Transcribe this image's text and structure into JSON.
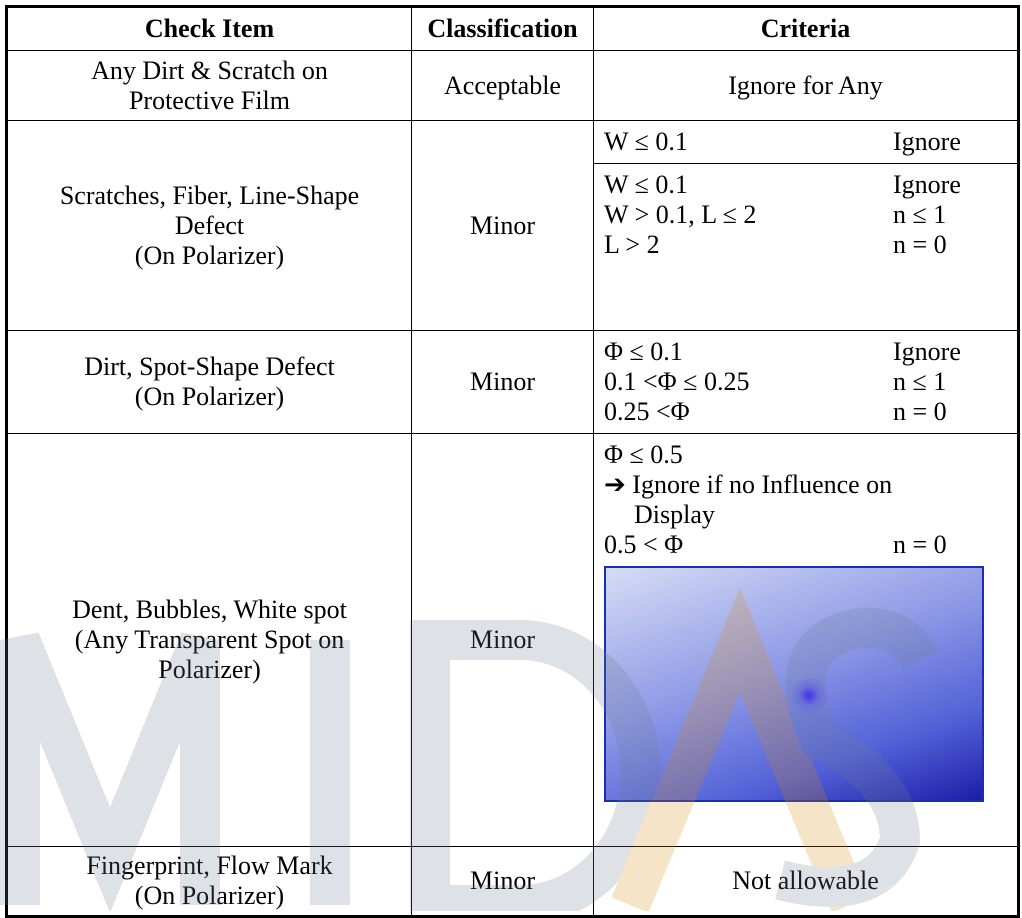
{
  "table": {
    "header": [
      "Check Item",
      "Classification",
      "Criteria"
    ],
    "rows": [
      {
        "item": [
          "Any Dirt & Scratch on",
          "Protective Film"
        ],
        "classification": "Acceptable",
        "criteria": "Ignore for Any"
      },
      {
        "item": [
          "Scratches, Fiber, Line-Shape",
          "Defect",
          "(On Polarizer)"
        ],
        "classification": "Minor",
        "criteria": [
          [
            [
              "W ≤ 0.1",
              "Ignore"
            ]
          ],
          [
            [
              "W ≤ 0.1",
              "Ignore"
            ],
            [
              "W > 0.1, L ≤ 2",
              "n ≤ 1"
            ],
            [
              "L > 2",
              "n = 0"
            ]
          ]
        ]
      },
      {
        "item": [
          "Dirt, Spot-Shape Defect",
          "(On Polarizer)"
        ],
        "classification": "Minor",
        "criteria": [
          [
            [
              "Φ ≤ 0.1",
              "Ignore"
            ],
            [
              "0.1 <Φ ≤ 0.25",
              "n ≤ 1"
            ],
            [
              "0.25 <Φ",
              "n = 0"
            ]
          ]
        ]
      },
      {
        "item": [
          "Dent, Bubbles, White spot",
          "(Any Transparent Spot on",
          "Polarizer)"
        ],
        "classification": "Minor",
        "criteria": {
          "lines": [
            "Φ ≤ 0.5",
            "➔ Ignore if no Influence on",
            "Display"
          ],
          "pair": [
            "0.5 < Φ",
            "n = 0"
          ]
        }
      },
      {
        "item": [
          "Fingerprint, Flow Mark",
          "(On Polarizer)"
        ],
        "classification": "Minor",
        "criteria": "Not allowable"
      }
    ]
  }
}
